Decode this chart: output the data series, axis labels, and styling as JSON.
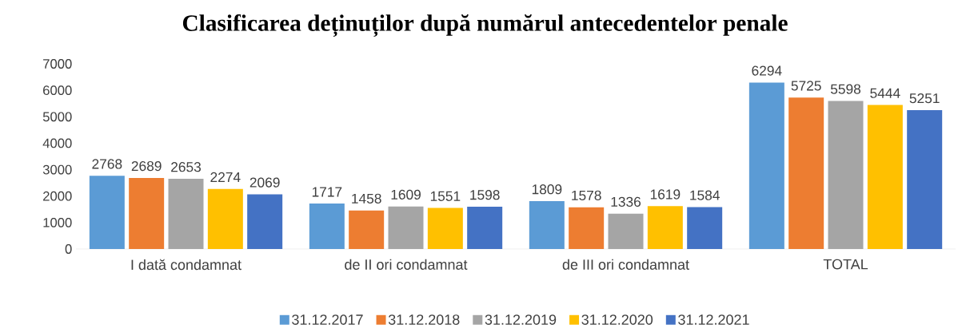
{
  "chart_data": {
    "type": "bar",
    "title": "Clasificarea deținuților după numărul antecedentelor penale",
    "categories": [
      "I dată condamnat",
      "de II ori condamnat",
      "de III ori condamnat",
      "TOTAL"
    ],
    "series": [
      {
        "name": "31.12.2017",
        "color": "#5b9bd5",
        "values": [
          2768,
          1717,
          1809,
          6294
        ]
      },
      {
        "name": "31.12.2018",
        "color": "#ed7d31",
        "values": [
          2689,
          1458,
          1578,
          5725
        ]
      },
      {
        "name": "31.12.2019",
        "color": "#a5a5a5",
        "values": [
          2653,
          1609,
          1336,
          5598
        ]
      },
      {
        "name": "31.12.2020",
        "color": "#ffc000",
        "values": [
          2274,
          1551,
          1619,
          5444
        ]
      },
      {
        "name": "31.12.2021",
        "color": "#4472c4",
        "values": [
          2069,
          1598,
          1584,
          5251
        ]
      }
    ],
    "ylim": [
      0,
      7000
    ],
    "yticks": [
      0,
      1000,
      2000,
      3000,
      4000,
      5000,
      6000,
      7000
    ],
    "data_labels": true,
    "legend": "bottom",
    "grid": false
  }
}
